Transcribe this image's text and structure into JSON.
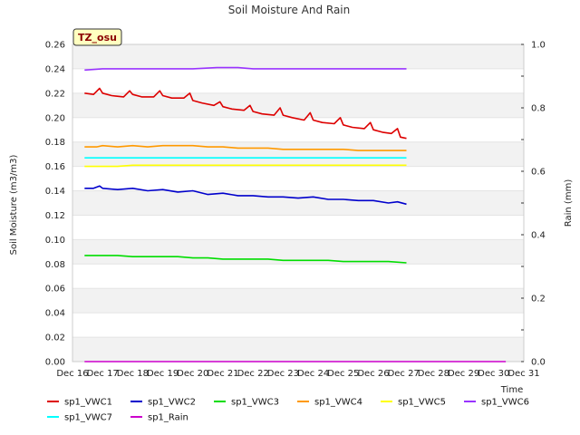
{
  "chart_data": {
    "type": "line",
    "title": "Soil Moisture And Rain",
    "site_badge": "TZ_osu",
    "xlabel": "Time",
    "ylabel_left": "Soil Moisture (m3/m3)",
    "ylabel_right": "Rain (mm)",
    "x_ticks": [
      "Dec 16",
      "Dec 17",
      "Dec 18",
      "Dec 19",
      "Dec 20",
      "Dec 21",
      "Dec 22",
      "Dec 23",
      "Dec 24",
      "Dec 25",
      "Dec 26",
      "Dec 27",
      "Dec 28",
      "Dec 29",
      "Dec 30",
      "Dec 31"
    ],
    "xlim": [
      16,
      31
    ],
    "ylim_left": [
      0.0,
      0.26
    ],
    "y_ticks_left": [
      "0.00",
      "0.02",
      "0.04",
      "0.06",
      "0.08",
      "0.10",
      "0.12",
      "0.14",
      "0.16",
      "0.18",
      "0.20",
      "0.22",
      "0.24",
      "0.26"
    ],
    "ylim_right": [
      0.0,
      1.0
    ],
    "y_ticks_right": [
      "0.0",
      "0.2",
      "0.4",
      "0.6",
      "0.8",
      "1.0"
    ],
    "grid": "alternating horizontal bands",
    "legend_placement": "bottom",
    "series": [
      {
        "name": "sp1_VWC1",
        "color": "#dd0000",
        "axis": "left",
        "x": [
          16.4,
          16.7,
          16.9,
          17.0,
          17.3,
          17.7,
          17.9,
          18.0,
          18.3,
          18.7,
          18.9,
          19.0,
          19.3,
          19.7,
          19.9,
          20.0,
          20.3,
          20.7,
          20.9,
          21.0,
          21.3,
          21.7,
          21.9,
          22.0,
          22.3,
          22.7,
          22.9,
          23.0,
          23.3,
          23.7,
          23.9,
          24.0,
          24.3,
          24.7,
          24.9,
          25.0,
          25.3,
          25.7,
          25.9,
          26.0,
          26.3,
          26.6,
          26.8,
          26.9,
          27.1
        ],
        "values": [
          0.22,
          0.219,
          0.224,
          0.22,
          0.218,
          0.217,
          0.222,
          0.219,
          0.217,
          0.217,
          0.222,
          0.218,
          0.216,
          0.216,
          0.22,
          0.214,
          0.212,
          0.21,
          0.213,
          0.209,
          0.207,
          0.206,
          0.21,
          0.205,
          0.203,
          0.202,
          0.208,
          0.202,
          0.2,
          0.198,
          0.204,
          0.198,
          0.196,
          0.195,
          0.2,
          0.194,
          0.192,
          0.191,
          0.196,
          0.19,
          0.188,
          0.187,
          0.191,
          0.184,
          0.183
        ]
      },
      {
        "name": "sp1_VWC2",
        "color": "#0000cc",
        "axis": "left",
        "x": [
          16.4,
          16.7,
          16.9,
          17.0,
          17.5,
          18.0,
          18.5,
          19.0,
          19.5,
          20.0,
          20.5,
          21.0,
          21.5,
          22.0,
          22.5,
          23.0,
          23.5,
          24.0,
          24.5,
          25.0,
          25.5,
          26.0,
          26.5,
          26.8,
          27.1
        ],
        "values": [
          0.142,
          0.142,
          0.144,
          0.142,
          0.141,
          0.142,
          0.14,
          0.141,
          0.139,
          0.14,
          0.137,
          0.138,
          0.136,
          0.136,
          0.135,
          0.135,
          0.134,
          0.135,
          0.133,
          0.133,
          0.132,
          0.132,
          0.13,
          0.131,
          0.129
        ]
      },
      {
        "name": "sp1_VWC3",
        "color": "#00dd00",
        "axis": "left",
        "x": [
          16.4,
          17.0,
          17.5,
          18.0,
          18.5,
          19.0,
          19.5,
          20.0,
          20.5,
          21.0,
          21.5,
          22.0,
          22.5,
          23.0,
          23.5,
          24.0,
          24.5,
          25.0,
          25.5,
          26.0,
          26.5,
          27.1
        ],
        "values": [
          0.087,
          0.087,
          0.087,
          0.086,
          0.086,
          0.086,
          0.086,
          0.085,
          0.085,
          0.084,
          0.084,
          0.084,
          0.084,
          0.083,
          0.083,
          0.083,
          0.083,
          0.082,
          0.082,
          0.082,
          0.082,
          0.081
        ]
      },
      {
        "name": "sp1_VWC4",
        "color": "#ff9900",
        "axis": "left",
        "x": [
          16.4,
          16.8,
          17.0,
          17.5,
          18.0,
          18.5,
          19.0,
          19.5,
          20.0,
          20.5,
          21.0,
          21.5,
          22.0,
          22.5,
          23.0,
          23.5,
          24.0,
          24.5,
          25.0,
          25.5,
          26.0,
          26.5,
          27.1
        ],
        "values": [
          0.176,
          0.176,
          0.177,
          0.176,
          0.177,
          0.176,
          0.177,
          0.177,
          0.177,
          0.176,
          0.176,
          0.175,
          0.175,
          0.175,
          0.174,
          0.174,
          0.174,
          0.174,
          0.174,
          0.173,
          0.173,
          0.173,
          0.173
        ]
      },
      {
        "name": "sp1_VWC5",
        "color": "#ffff00",
        "axis": "left",
        "x": [
          16.4,
          17.0,
          17.5,
          18.0,
          18.5,
          19.0,
          19.5,
          20.0,
          20.5,
          21.0,
          21.5,
          22.0,
          22.5,
          23.0,
          23.5,
          24.0,
          24.5,
          25.0,
          25.5,
          26.0,
          26.5,
          27.1
        ],
        "values": [
          0.16,
          0.16,
          0.16,
          0.161,
          0.161,
          0.161,
          0.161,
          0.161,
          0.161,
          0.161,
          0.161,
          0.161,
          0.161,
          0.161,
          0.161,
          0.161,
          0.161,
          0.161,
          0.161,
          0.161,
          0.161,
          0.161
        ]
      },
      {
        "name": "sp1_VWC6",
        "color": "#9933ff",
        "axis": "left",
        "x": [
          16.4,
          17.0,
          18.0,
          19.0,
          20.0,
          20.8,
          21.0,
          21.5,
          22.0,
          23.0,
          24.0,
          25.0,
          26.0,
          27.1
        ],
        "values": [
          0.239,
          0.24,
          0.24,
          0.24,
          0.24,
          0.241,
          0.241,
          0.241,
          0.24,
          0.24,
          0.24,
          0.24,
          0.24,
          0.24
        ]
      },
      {
        "name": "sp1_VWC7",
        "color": "#00ffff",
        "axis": "left",
        "x": [
          16.4,
          17.0,
          18.0,
          19.0,
          20.0,
          21.0,
          22.0,
          23.0,
          24.0,
          25.0,
          26.0,
          27.1
        ],
        "values": [
          0.167,
          0.167,
          0.167,
          0.167,
          0.167,
          0.167,
          0.167,
          0.167,
          0.167,
          0.167,
          0.167,
          0.167
        ]
      },
      {
        "name": "sp1_Rain",
        "color": "#cc00cc",
        "axis": "right",
        "x": [
          16.4,
          30.4
        ],
        "values": [
          0.0,
          0.0
        ]
      }
    ]
  }
}
